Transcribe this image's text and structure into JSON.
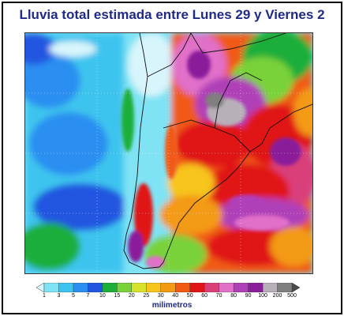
{
  "title": "Lluvia total estimada entre Lunes 29 y Viernes 2",
  "legend": {
    "units": "milimetros",
    "ticks": [
      "1",
      "3",
      "5",
      "7",
      "10",
      "15",
      "20",
      "25",
      "30",
      "40",
      "50",
      "60",
      "70",
      "80",
      "90",
      "100",
      "200",
      "500"
    ],
    "colors": [
      "#d8f5fb",
      "#7fe3f4",
      "#3cc4ee",
      "#2a8ff0",
      "#2356e0",
      "#1fae3a",
      "#7ad23a",
      "#d6e32a",
      "#f7c51e",
      "#f39a14",
      "#f05a12",
      "#e01515",
      "#d9407a",
      "#e070c8",
      "#b040b8",
      "#8a1f9a",
      "#b8b0b8",
      "#7f7f7f",
      "#4a4a4a"
    ]
  },
  "map": {
    "region": "Sur de Sudamerica",
    "colors": {
      "ocean_low": "#7fe3f4",
      "ocean_mid": "#2a8ff0",
      "heavy": "#e01515",
      "very_heavy": "#8a1f9a",
      "extreme": "#b8b0b8"
    }
  }
}
